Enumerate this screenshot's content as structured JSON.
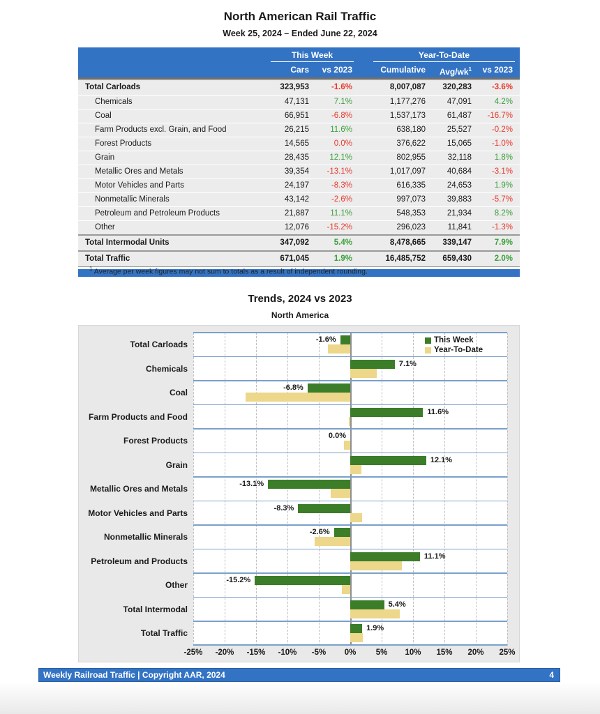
{
  "page": {
    "title": "North American Rail Traffic",
    "subtitle": "Week 25, 2024 – Ended June 22, 2024"
  },
  "table": {
    "groups": {
      "this_week": "This Week",
      "ytd": "Year-To-Date"
    },
    "columns": {
      "cars": "Cars",
      "week_vs": "vs 2023",
      "cumulative": "Cumulative",
      "avg_wk": "Avg/wk",
      "avg_wk_sup": "1",
      "ytd_vs": "vs 2023"
    },
    "rows": [
      {
        "label": "Total Carloads",
        "total": true,
        "indent": false,
        "cars": "323,953",
        "wk_pct": "-1.6%",
        "wk_dir": "neg",
        "cumulative": "8,007,087",
        "avg_wk": "320,283",
        "ytd_pct": "-3.6%",
        "ytd_dir": "neg"
      },
      {
        "label": "Chemicals",
        "total": false,
        "indent": true,
        "cars": "47,131",
        "wk_pct": "7.1%",
        "wk_dir": "pos",
        "cumulative": "1,177,276",
        "avg_wk": "47,091",
        "ytd_pct": "4.2%",
        "ytd_dir": "pos"
      },
      {
        "label": "Coal",
        "total": false,
        "indent": true,
        "cars": "66,951",
        "wk_pct": "-6.8%",
        "wk_dir": "neg",
        "cumulative": "1,537,173",
        "avg_wk": "61,487",
        "ytd_pct": "-16.7%",
        "ytd_dir": "neg"
      },
      {
        "label": "Farm Products excl. Grain, and Food",
        "total": false,
        "indent": true,
        "cars": "26,215",
        "wk_pct": "11.6%",
        "wk_dir": "pos",
        "cumulative": "638,180",
        "avg_wk": "25,527",
        "ytd_pct": "-0.2%",
        "ytd_dir": "neg"
      },
      {
        "label": "Forest Products",
        "total": false,
        "indent": true,
        "cars": "14,565",
        "wk_pct": "0.0%",
        "wk_dir": "neg",
        "cumulative": "376,622",
        "avg_wk": "15,065",
        "ytd_pct": "-1.0%",
        "ytd_dir": "neg"
      },
      {
        "label": "Grain",
        "total": false,
        "indent": true,
        "cars": "28,435",
        "wk_pct": "12.1%",
        "wk_dir": "pos",
        "cumulative": "802,955",
        "avg_wk": "32,118",
        "ytd_pct": "1.8%",
        "ytd_dir": "pos"
      },
      {
        "label": "Metallic Ores and Metals",
        "total": false,
        "indent": true,
        "cars": "39,354",
        "wk_pct": "-13.1%",
        "wk_dir": "neg",
        "cumulative": "1,017,097",
        "avg_wk": "40,684",
        "ytd_pct": "-3.1%",
        "ytd_dir": "neg"
      },
      {
        "label": "Motor Vehicles and Parts",
        "total": false,
        "indent": true,
        "cars": "24,197",
        "wk_pct": "-8.3%",
        "wk_dir": "neg",
        "cumulative": "616,335",
        "avg_wk": "24,653",
        "ytd_pct": "1.9%",
        "ytd_dir": "pos"
      },
      {
        "label": "Nonmetallic Minerals",
        "total": false,
        "indent": true,
        "cars": "43,142",
        "wk_pct": "-2.6%",
        "wk_dir": "neg",
        "cumulative": "997,073",
        "avg_wk": "39,883",
        "ytd_pct": "-5.7%",
        "ytd_dir": "neg"
      },
      {
        "label": "Petroleum and Petroleum Products",
        "total": false,
        "indent": true,
        "cars": "21,887",
        "wk_pct": "11.1%",
        "wk_dir": "pos",
        "cumulative": "548,353",
        "avg_wk": "21,934",
        "ytd_pct": "8.2%",
        "ytd_dir": "pos"
      },
      {
        "label": "Other",
        "total": false,
        "indent": true,
        "cars": "12,076",
        "wk_pct": "-15.2%",
        "wk_dir": "neg",
        "cumulative": "296,023",
        "avg_wk": "11,841",
        "ytd_pct": "-1.3%",
        "ytd_dir": "neg"
      },
      {
        "label": "Total Intermodal Units",
        "total": true,
        "indent": false,
        "cars": "347,092",
        "wk_pct": "5.4%",
        "wk_dir": "pos",
        "cumulative": "8,478,665",
        "avg_wk": "339,147",
        "ytd_pct": "7.9%",
        "ytd_dir": "pos"
      },
      {
        "label": "Total Traffic",
        "total": true,
        "indent": false,
        "cars": "671,045",
        "wk_pct": "1.9%",
        "wk_dir": "pos",
        "cumulative": "16,485,752",
        "avg_wk": "659,430",
        "ytd_pct": "2.0%",
        "ytd_dir": "pos"
      }
    ],
    "footnote_sup": "1",
    "footnote": "Average per week figures may not sum to totals as a result of independent rounding."
  },
  "chart_data": {
    "type": "bar",
    "orientation": "horizontal",
    "title": "Trends, 2024 vs 2023",
    "subtitle": "North America",
    "categories": [
      "Total Carloads",
      "Chemicals",
      "Coal",
      "Farm Products and Food",
      "Forest Products",
      "Grain",
      "Metallic Ores and Metals",
      "Motor Vehicles and Parts",
      "Nonmetallic Minerals",
      "Petroleum and Products",
      "Other",
      "Total Intermodal",
      "Total Traffic"
    ],
    "series": [
      {
        "name": "This Week",
        "color": "#3b7d28",
        "values": [
          -1.6,
          7.1,
          -6.8,
          11.6,
          0.0,
          12.1,
          -13.1,
          -8.3,
          -2.6,
          11.1,
          -15.2,
          5.4,
          1.9
        ]
      },
      {
        "name": "Year-To-Date",
        "color": "#ecd78a",
        "values": [
          -3.6,
          4.2,
          -16.7,
          -0.2,
          -1.0,
          1.8,
          -3.1,
          1.9,
          -5.7,
          8.2,
          -1.3,
          7.9,
          2.0
        ]
      }
    ],
    "xlim": [
      -25,
      25
    ],
    "tick_step": 5,
    "tick_suffix": "%",
    "data_labels_series": "This Week",
    "legend_position": "top-right",
    "grid": "dashed-vertical-every-5pct"
  },
  "footer": {
    "left": "Weekly Railroad Traffic | Copyright AAR, 2024",
    "page": "4"
  },
  "colors": {
    "header_blue": "#3373c4",
    "row_bg": "#ececec",
    "neg_red": "#e8392b",
    "pos_green": "#3ba03b",
    "bar_green": "#3b7d28",
    "bar_tan": "#ecd78a",
    "band_line_blue": "#7aa0cc",
    "panel_bg": "#e9e9e9"
  }
}
